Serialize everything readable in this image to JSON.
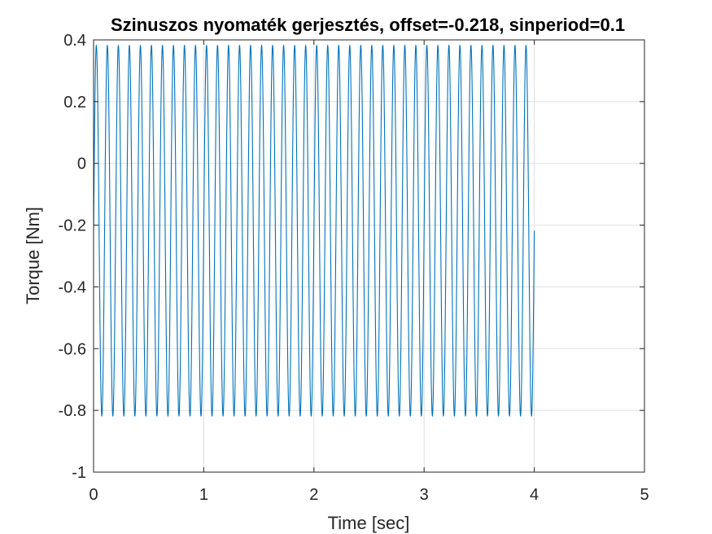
{
  "chart_data": {
    "type": "line",
    "title": "Szinuszos nyomaték gerjesztés, offset=-0.218, sinperiod=0.1",
    "xlabel": "Time [sec]",
    "ylabel": "Torque [Nm]",
    "xlim": [
      0,
      5
    ],
    "ylim": [
      -1,
      0.4
    ],
    "xticks": [
      0,
      1,
      2,
      3,
      4,
      5
    ],
    "xtick_labels": [
      "0",
      "1",
      "2",
      "3",
      "4",
      "5"
    ],
    "yticks": [
      -1,
      -0.8,
      -0.6,
      -0.4,
      -0.2,
      0,
      0.2,
      0.4
    ],
    "ytick_labels": [
      "-1",
      "-0.8",
      "-0.6",
      "-0.4",
      "-0.2",
      "0",
      "0.2",
      "0.4"
    ],
    "grid": true,
    "legend": "none",
    "line_color": "#0072bd",
    "series": [
      {
        "function": "offset + amplitude*sin(2*pi*t/period)",
        "offset": -0.218,
        "amplitude": 0.6,
        "period": 0.1,
        "t_start": 0,
        "t_end": 4
      }
    ]
  }
}
